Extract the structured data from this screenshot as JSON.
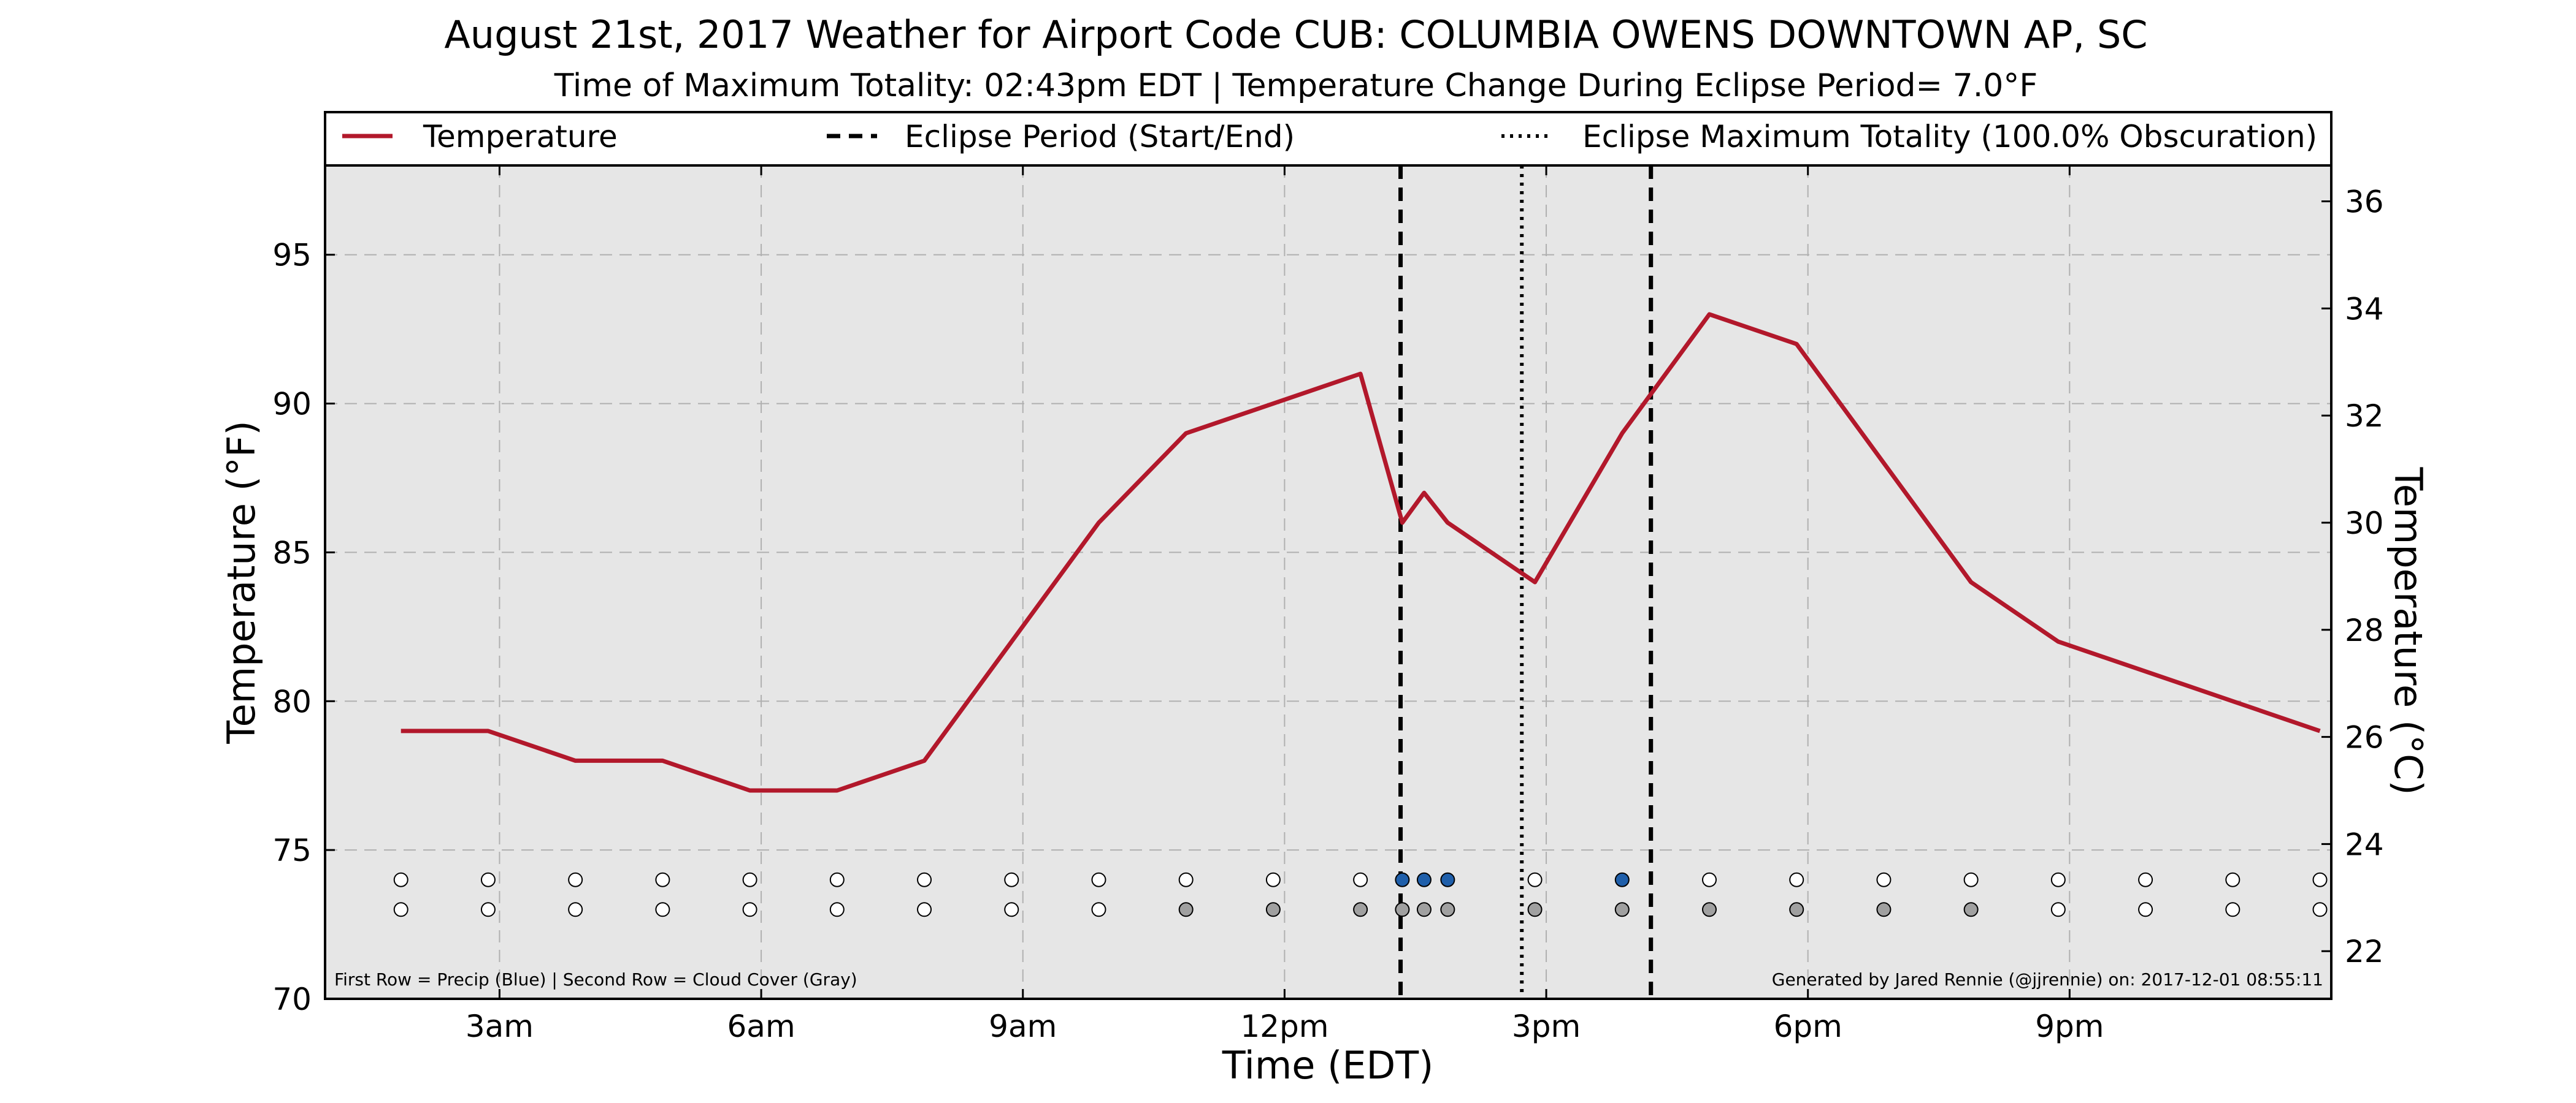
{
  "chart_data": {
    "type": "line",
    "title": "August 21st, 2017 Weather for Airport Code CUB: COLUMBIA OWENS DOWNTOWN AP, SC",
    "subtitle": "Time of Maximum Totality: 02:43pm EDT | Temperature Change During Eclipse Period= 7.0$^\\circ$F",
    "subtitle_display": "Time of Maximum Totality: 02:43pm EDT | Temperature Change During Eclipse Period= 7.0°F",
    "xlabel": "Time (EDT)",
    "ylabel": "Temperature ($^\\circ$F)",
    "ylabel_display": "Temperature (°F)",
    "ylabel_right": "Temperature ($^\\circ$C)",
    "ylabel_right_display": "Temperature (°C)",
    "x_unit": "hours after midnight EDT",
    "xlim": [
      1.0,
      24.0
    ],
    "ylim": [
      70,
      98
    ],
    "ylim_right_celsius": [
      21.11,
      36.67
    ],
    "x_ticks": [
      {
        "value": 3,
        "label": "3am"
      },
      {
        "value": 6,
        "label": "6am"
      },
      {
        "value": 9,
        "label": "9am"
      },
      {
        "value": 12,
        "label": "12pm"
      },
      {
        "value": 15,
        "label": "3pm"
      },
      {
        "value": 18,
        "label": "6pm"
      },
      {
        "value": 21,
        "label": "9pm"
      }
    ],
    "y_ticks": [
      70,
      75,
      80,
      85,
      90,
      95
    ],
    "y_ticks_right": [
      22,
      24,
      26,
      28,
      30,
      32,
      34,
      36
    ],
    "grid": true,
    "legend_position": "top",
    "legend": [
      {
        "label": "Temperature",
        "style": "solid"
      },
      {
        "label": "Eclipse Period (Start/End)",
        "style": "dashed"
      },
      {
        "label": "Eclipse Maximum Totality (100.0% Obscuration)",
        "style": "dotted"
      }
    ],
    "series": [
      {
        "name": "Temperature",
        "color": "#b2182b",
        "points": [
          {
            "x": 1.87,
            "y": 79
          },
          {
            "x": 2.87,
            "y": 79
          },
          {
            "x": 3.87,
            "y": 78
          },
          {
            "x": 4.87,
            "y": 78
          },
          {
            "x": 5.87,
            "y": 77
          },
          {
            "x": 6.87,
            "y": 77
          },
          {
            "x": 7.87,
            "y": 78
          },
          {
            "x": 8.87,
            "y": 82
          },
          {
            "x": 9.87,
            "y": 86
          },
          {
            "x": 10.87,
            "y": 89
          },
          {
            "x": 11.87,
            "y": 90
          },
          {
            "x": 12.87,
            "y": 91
          },
          {
            "x": 13.35,
            "y": 86
          },
          {
            "x": 13.6,
            "y": 87
          },
          {
            "x": 13.87,
            "y": 86
          },
          {
            "x": 14.87,
            "y": 84
          },
          {
            "x": 15.87,
            "y": 89
          },
          {
            "x": 16.87,
            "y": 93
          },
          {
            "x": 17.87,
            "y": 92
          },
          {
            "x": 18.87,
            "y": 88
          },
          {
            "x": 19.87,
            "y": 84
          },
          {
            "x": 20.87,
            "y": 82
          },
          {
            "x": 21.87,
            "y": 81
          },
          {
            "x": 22.87,
            "y": 80
          },
          {
            "x": 23.87,
            "y": 79
          }
        ]
      }
    ],
    "eclipse_start": 13.33,
    "eclipse_end": 16.2,
    "eclipse_max_totality": 14.72,
    "precip_row_y": 74,
    "cloud_row_y": 73,
    "observation_markers": [
      {
        "x": 1.87,
        "precip": false,
        "cloud": false
      },
      {
        "x": 2.87,
        "precip": false,
        "cloud": false
      },
      {
        "x": 3.87,
        "precip": false,
        "cloud": false
      },
      {
        "x": 4.87,
        "precip": false,
        "cloud": false
      },
      {
        "x": 5.87,
        "precip": false,
        "cloud": false
      },
      {
        "x": 6.87,
        "precip": false,
        "cloud": false
      },
      {
        "x": 7.87,
        "precip": false,
        "cloud": false
      },
      {
        "x": 8.87,
        "precip": false,
        "cloud": false
      },
      {
        "x": 9.87,
        "precip": false,
        "cloud": false
      },
      {
        "x": 10.87,
        "precip": false,
        "cloud": true
      },
      {
        "x": 11.87,
        "precip": false,
        "cloud": true
      },
      {
        "x": 12.87,
        "precip": false,
        "cloud": true
      },
      {
        "x": 13.35,
        "precip": true,
        "cloud": true
      },
      {
        "x": 13.6,
        "precip": true,
        "cloud": true
      },
      {
        "x": 13.87,
        "precip": true,
        "cloud": true
      },
      {
        "x": 14.87,
        "precip": false,
        "cloud": true
      },
      {
        "x": 15.87,
        "precip": true,
        "cloud": true
      },
      {
        "x": 16.87,
        "precip": false,
        "cloud": true
      },
      {
        "x": 17.87,
        "precip": false,
        "cloud": true
      },
      {
        "x": 18.87,
        "precip": false,
        "cloud": true
      },
      {
        "x": 19.87,
        "precip": false,
        "cloud": true
      },
      {
        "x": 20.87,
        "precip": false,
        "cloud": false
      },
      {
        "x": 21.87,
        "precip": false,
        "cloud": false
      },
      {
        "x": 22.87,
        "precip": false,
        "cloud": false
      },
      {
        "x": 23.87,
        "precip": false,
        "cloud": false
      }
    ],
    "annotation_left": "First Row = Precip (Blue) | Second Row = Cloud Cover (Gray)",
    "annotation_right": "Generated by Jared Rennie (@jjrennie) on: 2017-12-01 08:55:11",
    "colors": {
      "temperature": "#b2182b",
      "plot_background": "#e6e6e6",
      "precip_marker": "#1f5faa",
      "cloud_marker": "#a0a0a0",
      "empty_marker": "#ffffff",
      "grid": "#b0b0b0",
      "eclipse_line": "#000000"
    }
  }
}
